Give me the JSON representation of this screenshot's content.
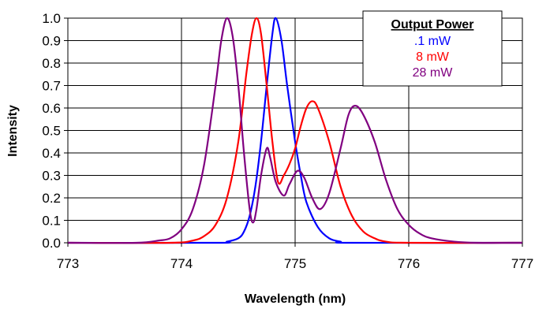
{
  "chart_data": {
    "type": "line",
    "xlabel": "Wavelength (nm)",
    "ylabel": "Intensity",
    "xlim": [
      773,
      777
    ],
    "ylim": [
      0,
      1
    ],
    "x_ticks": [
      "773",
      "774",
      "775",
      "776",
      "777"
    ],
    "y_ticks": [
      "0.0",
      "0.1",
      "0.2",
      "0.3",
      "0.4",
      "0.5",
      "0.6",
      "0.7",
      "0.8",
      "0.9",
      "1.0"
    ],
    "grid": true,
    "legend_title": "Output Power",
    "legend_position": "top-right",
    "series": [
      {
        "name": ".1 mW",
        "color": "#0000ff",
        "points": [
          [
            773.0,
            0
          ],
          [
            774.3,
            0
          ],
          [
            774.4,
            0.005
          ],
          [
            774.5,
            0.02
          ],
          [
            774.55,
            0.05
          ],
          [
            774.6,
            0.12
          ],
          [
            774.65,
            0.25
          ],
          [
            774.7,
            0.45
          ],
          [
            774.75,
            0.7
          ],
          [
            774.8,
            0.93
          ],
          [
            774.83,
            1.0
          ],
          [
            774.88,
            0.9
          ],
          [
            774.93,
            0.7
          ],
          [
            775.0,
            0.45
          ],
          [
            775.05,
            0.3
          ],
          [
            775.1,
            0.18
          ],
          [
            775.2,
            0.07
          ],
          [
            775.3,
            0.02
          ],
          [
            775.4,
            0.005
          ],
          [
            775.5,
            0
          ],
          [
            777.0,
            0
          ]
        ]
      },
      {
        "name": "8 mW",
        "color": "#ff0000",
        "points": [
          [
            773.0,
            0
          ],
          [
            773.9,
            0
          ],
          [
            774.1,
            0.01
          ],
          [
            774.2,
            0.03
          ],
          [
            774.3,
            0.08
          ],
          [
            774.4,
            0.2
          ],
          [
            774.5,
            0.45
          ],
          [
            774.57,
            0.75
          ],
          [
            774.62,
            0.93
          ],
          [
            774.66,
            1.0
          ],
          [
            774.7,
            0.93
          ],
          [
            774.75,
            0.7
          ],
          [
            774.8,
            0.45
          ],
          [
            774.85,
            0.27
          ],
          [
            774.9,
            0.3
          ],
          [
            774.95,
            0.35
          ],
          [
            775.0,
            0.42
          ],
          [
            775.05,
            0.52
          ],
          [
            775.1,
            0.6
          ],
          [
            775.15,
            0.63
          ],
          [
            775.2,
            0.6
          ],
          [
            775.3,
            0.45
          ],
          [
            775.4,
            0.25
          ],
          [
            775.5,
            0.12
          ],
          [
            775.6,
            0.05
          ],
          [
            775.7,
            0.02
          ],
          [
            775.8,
            0.005
          ],
          [
            776.0,
            0
          ],
          [
            777.0,
            0
          ]
        ]
      },
      {
        "name": "28 mW",
        "color": "#800080",
        "points": [
          [
            773.0,
            0
          ],
          [
            773.6,
            0
          ],
          [
            773.8,
            0.01
          ],
          [
            773.9,
            0.02
          ],
          [
            774.0,
            0.06
          ],
          [
            774.1,
            0.15
          ],
          [
            774.2,
            0.35
          ],
          [
            774.3,
            0.7
          ],
          [
            774.35,
            0.9
          ],
          [
            774.4,
            1.0
          ],
          [
            774.45,
            0.92
          ],
          [
            774.5,
            0.7
          ],
          [
            774.55,
            0.4
          ],
          [
            774.6,
            0.15
          ],
          [
            774.63,
            0.09
          ],
          [
            774.66,
            0.15
          ],
          [
            774.7,
            0.3
          ],
          [
            774.75,
            0.42
          ],
          [
            774.78,
            0.38
          ],
          [
            774.83,
            0.27
          ],
          [
            774.9,
            0.21
          ],
          [
            774.95,
            0.26
          ],
          [
            775.02,
            0.32
          ],
          [
            775.08,
            0.29
          ],
          [
            775.15,
            0.2
          ],
          [
            775.22,
            0.15
          ],
          [
            775.3,
            0.22
          ],
          [
            775.4,
            0.42
          ],
          [
            775.47,
            0.57
          ],
          [
            775.53,
            0.61
          ],
          [
            775.6,
            0.57
          ],
          [
            775.7,
            0.45
          ],
          [
            775.8,
            0.28
          ],
          [
            775.9,
            0.15
          ],
          [
            776.0,
            0.08
          ],
          [
            776.1,
            0.04
          ],
          [
            776.2,
            0.02
          ],
          [
            776.4,
            0.005
          ],
          [
            776.6,
            0
          ],
          [
            777.0,
            0
          ]
        ]
      }
    ]
  }
}
